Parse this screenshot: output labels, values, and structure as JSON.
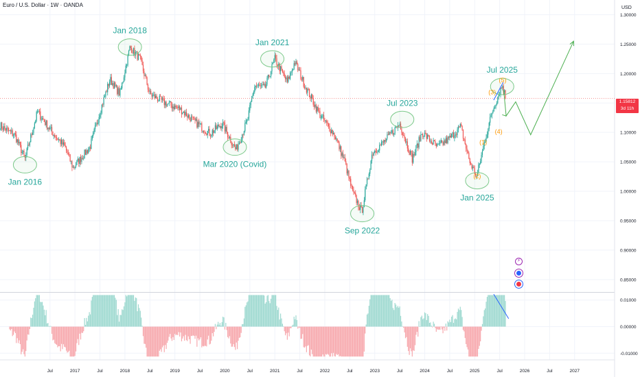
{
  "header": {
    "title": "Euro / U.S. Dollar · 1W · OANDA"
  },
  "price_tag": {
    "price": "1.15812",
    "countdown": "3d 11h"
  },
  "icons": [
    "lightning-icon",
    "blue-dot-icon",
    "us-flag-icon"
  ],
  "chart_data": {
    "type": "candlestick",
    "main": {
      "currency_label": "USD",
      "y_ticks": [
        0.85,
        0.9,
        0.95,
        1.0,
        1.05,
        1.1,
        1.15,
        1.2,
        1.25,
        1.3
      ],
      "y_tick_labels": [
        "0.85000",
        "0.90000",
        "0.95000",
        "1.00000",
        "1.05000",
        "1.10000",
        "1.15000",
        "1.20000",
        "1.25000",
        "1.30000"
      ],
      "ylim": [
        0.83,
        1.325
      ],
      "last_price": 1.15812,
      "price_path": [
        [
          2015.5,
          1.112
        ],
        [
          2015.8,
          1.095
        ],
        [
          2016.0,
          1.055
        ],
        [
          2016.25,
          1.135
        ],
        [
          2016.5,
          1.105
        ],
        [
          2016.8,
          1.075
        ],
        [
          2016.96,
          1.04
        ],
        [
          2017.3,
          1.075
        ],
        [
          2017.5,
          1.135
        ],
        [
          2017.7,
          1.19
        ],
        [
          2017.9,
          1.165
        ],
        [
          2018.1,
          1.245
        ],
        [
          2018.3,
          1.225
        ],
        [
          2018.5,
          1.165
        ],
        [
          2018.8,
          1.15
        ],
        [
          2019.1,
          1.14
        ],
        [
          2019.4,
          1.118
        ],
        [
          2019.7,
          1.098
        ],
        [
          2019.95,
          1.115
        ],
        [
          2020.22,
          1.07
        ],
        [
          2020.45,
          1.12
        ],
        [
          2020.6,
          1.18
        ],
        [
          2020.8,
          1.175
        ],
        [
          2021.0,
          1.225
        ],
        [
          2021.25,
          1.185
        ],
        [
          2021.4,
          1.22
        ],
        [
          2021.6,
          1.18
        ],
        [
          2021.9,
          1.13
        ],
        [
          2022.2,
          1.095
        ],
        [
          2022.4,
          1.05
        ],
        [
          2022.55,
          1.0
        ],
        [
          2022.74,
          0.965
        ],
        [
          2022.95,
          1.065
        ],
        [
          2023.2,
          1.085
        ],
        [
          2023.5,
          1.115
        ],
        [
          2023.75,
          1.055
        ],
        [
          2023.95,
          1.1
        ],
        [
          2024.25,
          1.075
        ],
        [
          2024.5,
          1.09
        ],
        [
          2024.72,
          1.11
        ],
        [
          2024.9,
          1.05
        ],
        [
          2025.04,
          1.025
        ],
        [
          2025.2,
          1.085
        ],
        [
          2025.35,
          1.135
        ],
        [
          2025.5,
          1.17
        ],
        [
          2025.56,
          1.18
        ],
        [
          2025.62,
          1.158
        ]
      ],
      "annotations": [
        {
          "label": "Jan 2016",
          "x": 2016.0,
          "y": 1.045,
          "position": "below"
        },
        {
          "label": "Jan 2018",
          "x": 2018.1,
          "y": 1.245,
          "position": "above"
        },
        {
          "label": "Mar 2020 (Covid)",
          "x": 2020.2,
          "y": 1.075,
          "position": "below"
        },
        {
          "label": "Jan 2021",
          "x": 2020.95,
          "y": 1.225,
          "position": "above"
        },
        {
          "label": "Sep 2022",
          "x": 2022.75,
          "y": 0.962,
          "position": "below"
        },
        {
          "label": "Jul 2023",
          "x": 2023.55,
          "y": 1.122,
          "position": "above"
        },
        {
          "label": "Jan 2025",
          "x": 2025.05,
          "y": 1.018,
          "position": "below"
        },
        {
          "label": "Jul 2025",
          "x": 2025.55,
          "y": 1.178,
          "position": "above"
        }
      ],
      "waves": [
        {
          "label": "(1)",
          "x": 2025.17,
          "y": 1.08
        },
        {
          "label": "(2)",
          "x": 2025.05,
          "y": 1.022
        },
        {
          "label": "(3)",
          "x": 2025.35,
          "y": 1.165
        },
        {
          "label": "(4)",
          "x": 2025.48,
          "y": 1.098
        },
        {
          "label": "(5)",
          "x": 2025.56,
          "y": 1.185
        }
      ],
      "trendline": [
        [
          2025.38,
          1.155
        ],
        [
          2025.57,
          1.185
        ]
      ],
      "projection": [
        [
          2025.58,
          1.172
        ],
        [
          2025.63,
          1.128
        ],
        [
          2025.82,
          1.152
        ],
        [
          2026.12,
          1.096
        ],
        [
          2026.98,
          1.255
        ]
      ],
      "projection_branch": [
        [
          2025.63,
          1.128
        ],
        [
          2025.55,
          1.13
        ]
      ]
    },
    "oscillator": {
      "y_ticks": [
        0.01,
        0.0,
        -0.01
      ],
      "y_tick_labels": [
        "0.01000",
        "0.00000",
        "-0.01000"
      ],
      "ylim": [
        -0.0125,
        0.0125
      ],
      "trendline": [
        [
          2025.38,
          0.0122
        ],
        [
          2025.68,
          0.003
        ]
      ]
    },
    "x_axis": {
      "xlim": [
        2015.5,
        2027.8
      ],
      "ticks": [
        {
          "x": 2016.5,
          "label": "Jul"
        },
        {
          "x": 2017.0,
          "label": "2017"
        },
        {
          "x": 2017.5,
          "label": "Jul"
        },
        {
          "x": 2018.0,
          "label": "2018"
        },
        {
          "x": 2018.5,
          "label": "Jul"
        },
        {
          "x": 2019.0,
          "label": "2019"
        },
        {
          "x": 2019.5,
          "label": "Jul"
        },
        {
          "x": 2020.0,
          "label": "2020"
        },
        {
          "x": 2020.5,
          "label": "Jul"
        },
        {
          "x": 2021.0,
          "label": "2021"
        },
        {
          "x": 2021.5,
          "label": "Jul"
        },
        {
          "x": 2022.0,
          "label": "2022"
        },
        {
          "x": 2022.5,
          "label": "Jul"
        },
        {
          "x": 2023.0,
          "label": "2023"
        },
        {
          "x": 2023.5,
          "label": "Jul"
        },
        {
          "x": 2024.0,
          "label": "2024"
        },
        {
          "x": 2024.5,
          "label": "Jul"
        },
        {
          "x": 2025.0,
          "label": "2025"
        },
        {
          "x": 2025.5,
          "label": "Jul"
        },
        {
          "x": 2026.0,
          "label": "2026"
        },
        {
          "x": 2026.5,
          "label": "Jul"
        },
        {
          "x": 2027.0,
          "label": "2027"
        }
      ]
    },
    "grid": true,
    "colors": {
      "up": "#26a69a",
      "down": "#ef5350",
      "up_hist": "#9ed9d0",
      "down_hist": "#f7a8ad",
      "annotation": "#26a69a",
      "ellipse": "#7cc98a",
      "wave": "#ff9800",
      "trend": "#2962ff",
      "projection": "#4caf50",
      "grid": "#f0f3fa",
      "axis_text": "#131722"
    }
  }
}
